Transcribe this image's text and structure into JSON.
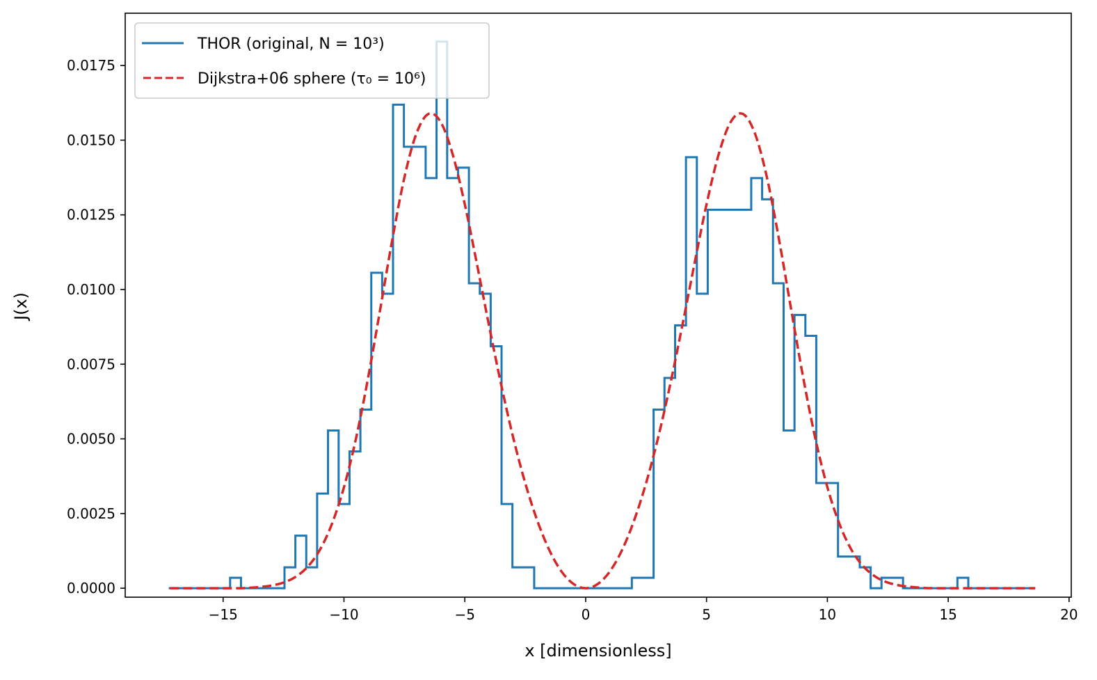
{
  "chart_data": {
    "type": "line",
    "xlabel": "x [dimensionless]",
    "ylabel": "J(x)",
    "xlim": [
      -19.05,
      20.09
    ],
    "ylim": [
      -0.0003,
      0.01925
    ],
    "grid": false,
    "legend_placement": "top-left",
    "xticks": [
      -15,
      -10,
      -5,
      0,
      5,
      10,
      15,
      20
    ],
    "xtick_labels": [
      "−15",
      "−10",
      "−5",
      "0",
      "5",
      "10",
      "15",
      "20"
    ],
    "yticks": [
      0,
      0.0025,
      0.005,
      0.0075,
      0.01,
      0.0125,
      0.015,
      0.0175
    ],
    "ytick_labels": [
      "0.0000",
      "0.0025",
      "0.0050",
      "0.0075",
      "0.0100",
      "0.0125",
      "0.0150",
      "0.0175"
    ],
    "series": [
      {
        "name": "THOR (original, N = 10³)",
        "style": "step",
        "color": "#1f77b4",
        "bin_edges": [
          -17.25,
          -16.95,
          -16.5,
          -16.05,
          -15.6,
          -15.15,
          -14.71,
          -14.26,
          -13.81,
          -13.36,
          -12.91,
          -12.46,
          -12.01,
          -11.56,
          -11.11,
          -10.66,
          -10.22,
          -9.77,
          -9.32,
          -8.87,
          -8.42,
          -7.97,
          -7.52,
          -7.07,
          -6.62,
          -6.17,
          -5.73,
          -5.28,
          -4.83,
          -4.38,
          -3.93,
          -3.48,
          -3.03,
          -2.58,
          -2.13,
          -1.68,
          -1.24,
          -0.79,
          -0.34,
          0.11,
          0.56,
          1.01,
          1.46,
          1.91,
          2.36,
          2.81,
          3.26,
          3.7,
          4.15,
          4.6,
          5.05,
          5.5,
          5.95,
          6.4,
          6.85,
          7.3,
          7.75,
          8.19,
          8.64,
          9.09,
          9.54,
          9.99,
          10.44,
          10.89,
          11.34,
          11.79,
          12.24,
          12.68,
          13.13,
          13.58,
          14.03,
          14.48,
          14.93,
          15.38,
          15.83,
          16.28,
          16.73,
          17.17,
          17.62,
          18.07,
          18.6
        ],
        "values": [
          0,
          0,
          0,
          0,
          0,
          0,
          0.00035,
          0,
          0,
          0,
          0,
          0.0007,
          0.00176,
          0.0007,
          0.00317,
          0.00528,
          0.00282,
          0.00458,
          0.00598,
          0.01056,
          0.00986,
          0.01619,
          0.01478,
          0.01478,
          0.01373,
          0.0183,
          0.01373,
          0.01408,
          0.01021,
          0.00986,
          0.0081,
          0.00282,
          0.0007,
          0.0007,
          0,
          0,
          0,
          0,
          0,
          0,
          0,
          0,
          0,
          0.00035,
          0.00035,
          0.00598,
          0.00704,
          0.0088,
          0.01443,
          0.00986,
          0.01267,
          0.01267,
          0.01267,
          0.01267,
          0.01373,
          0.01302,
          0.01021,
          0.00528,
          0.00915,
          0.00845,
          0.00352,
          0.00352,
          0.00106,
          0.00106,
          0.0007,
          0,
          0.00035,
          0.00035,
          0,
          0,
          0,
          0,
          0,
          0.00035,
          0,
          0,
          0,
          0,
          0,
          0
        ]
      },
      {
        "name": "Dijkstra+06 sphere (τ₀ = 10⁶)",
        "style": "dashed",
        "color": "#d62728",
        "x": [
          -17.2,
          -16.5,
          -16,
          -15.5,
          -15,
          -14.5,
          -14,
          -13.5,
          -13,
          -12.5,
          -12,
          -11.5,
          -11,
          -10.5,
          -10,
          -9.5,
          -9,
          -8.5,
          -8,
          -7.5,
          -7,
          -6.5,
          -6,
          -5.5,
          -5,
          -4.5,
          -4,
          -3.5,
          -3,
          -2.5,
          -2,
          -1.5,
          -1,
          -0.5,
          0,
          0.5,
          1,
          1.5,
          2,
          2.5,
          3,
          3.5,
          4,
          4.5,
          5,
          5.5,
          6,
          6.5,
          7,
          7.5,
          8,
          8.5,
          9,
          9.5,
          10,
          10.5,
          11,
          11.5,
          12,
          12.5,
          13,
          13.5,
          14,
          14.5,
          15,
          15.5,
          16,
          16.5,
          17,
          17.5,
          18,
          18.6
        ],
        "y": [
          0,
          0,
          0,
          0,
          0,
          0,
          1e-05,
          4e-05,
          9e-05,
          0.00019,
          0.00038,
          0.00072,
          0.00128,
          0.00215,
          0.00338,
          0.00502,
          0.00705,
          0.00934,
          0.01167,
          0.01375,
          0.01523,
          0.01588,
          0.01561,
          0.01452,
          0.01285,
          0.01086,
          0.0088,
          0.00683,
          0.00505,
          0.00352,
          0.00226,
          0.00127,
          0.00056,
          0.00014,
          0,
          0.00014,
          0.00056,
          0.00127,
          0.00226,
          0.00352,
          0.00505,
          0.00683,
          0.0088,
          0.01086,
          0.01285,
          0.01452,
          0.01561,
          0.01588,
          0.01523,
          0.01375,
          0.01167,
          0.00934,
          0.00705,
          0.00502,
          0.00338,
          0.00215,
          0.00128,
          0.00072,
          0.00038,
          0.00019,
          9e-05,
          4e-05,
          1e-05,
          0,
          0,
          0,
          0,
          0,
          0,
          0,
          0,
          0
        ]
      }
    ]
  }
}
